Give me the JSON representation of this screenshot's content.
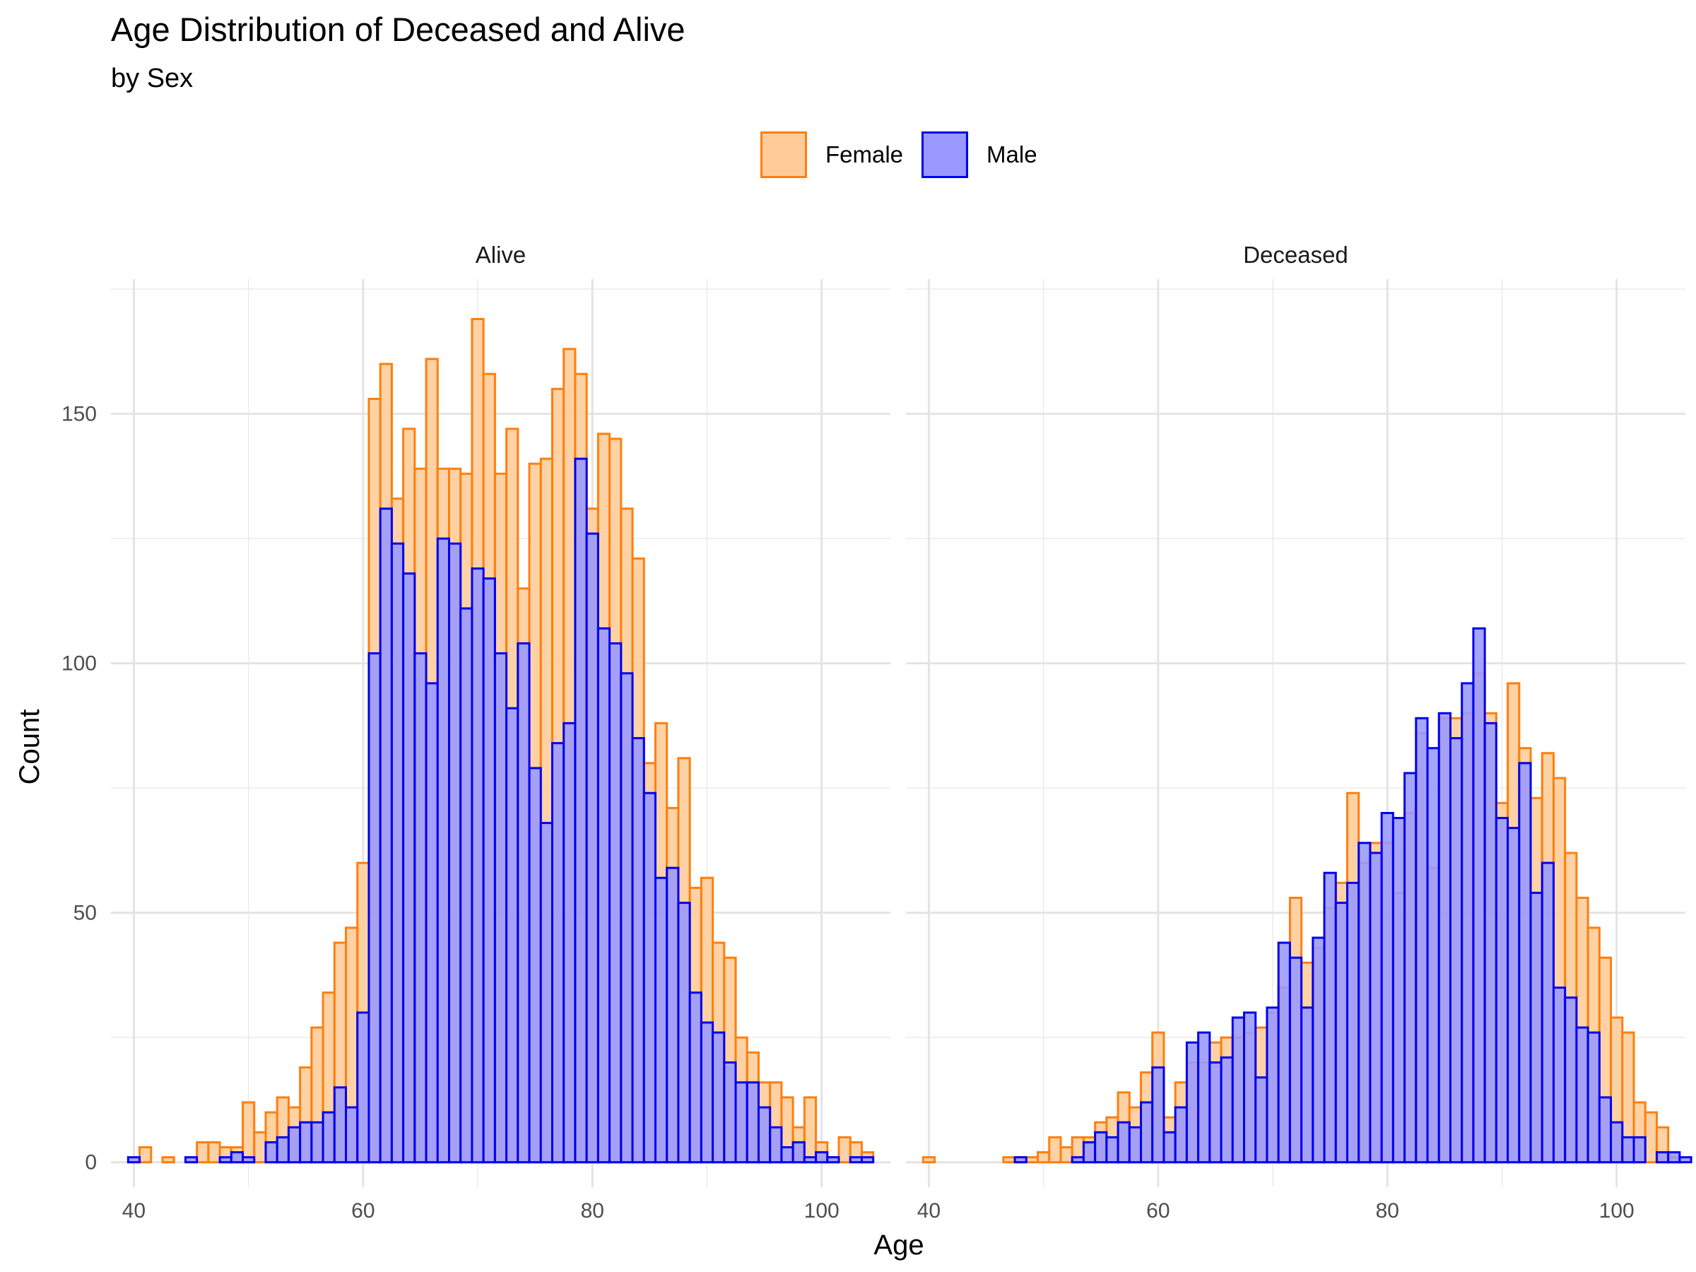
{
  "chart_data": {
    "type": "bar",
    "title": "Age Distribution of Deceased and Alive",
    "subtitle": "by Sex",
    "xlabel": "Age",
    "ylabel": "Count",
    "xlim": [
      38,
      106
    ],
    "ylim": [
      -5,
      177
    ],
    "x_ticks": [
      40,
      60,
      80,
      100
    ],
    "y_ticks": [
      0,
      50,
      100,
      150
    ],
    "grid": true,
    "legend": {
      "position": "top",
      "entries": [
        {
          "name": "Female",
          "fill": "#FFCC99",
          "stroke": "#FF7F0E"
        },
        {
          "name": "Male",
          "fill": "#9999FF",
          "stroke": "#0000EE"
        }
      ]
    },
    "bin_width": 1,
    "bins_start": 40,
    "facets": [
      {
        "label": "Alive",
        "series": [
          {
            "name": "Female",
            "values": [
              0,
              3,
              0,
              1,
              0,
              0,
              4,
              4,
              3,
              3,
              12,
              6,
              10,
              13,
              11,
              19,
              27,
              34,
              44,
              47,
              60,
              153,
              160,
              133,
              147,
              139,
              161,
              139,
              139,
              138,
              169,
              158,
              138,
              147,
              115,
              140,
              141,
              155,
              163,
              158,
              131,
              146,
              145,
              131,
              121,
              80,
              88,
              71,
              81,
              55,
              57,
              44,
              41,
              25,
              22,
              16,
              16,
              13,
              7,
              13,
              4,
              1,
              5,
              4,
              2
            ]
          },
          {
            "name": "Male",
            "values": [
              1,
              0,
              0,
              0,
              0,
              1,
              0,
              0,
              1,
              2,
              1,
              0,
              4,
              5,
              7,
              8,
              8,
              10,
              15,
              11,
              30,
              102,
              131,
              124,
              118,
              102,
              96,
              125,
              124,
              111,
              119,
              117,
              102,
              91,
              104,
              79,
              68,
              84,
              88,
              141,
              126,
              107,
              104,
              98,
              85,
              74,
              57,
              59,
              52,
              34,
              28,
              26,
              20,
              16,
              16,
              11,
              7,
              3,
              4,
              1,
              2,
              1,
              0,
              1,
              1
            ]
          }
        ]
      },
      {
        "label": "Deceased",
        "series": [
          {
            "name": "Female",
            "values": [
              1,
              0,
              0,
              0,
              0,
              0,
              0,
              1,
              1,
              1,
              2,
              5,
              3,
              5,
              5,
              8,
              9,
              14,
              11,
              18,
              26,
              9,
              16,
              20,
              20,
              24,
              25,
              25,
              26,
              27,
              30,
              35,
              53,
              40,
              43,
              51,
              56,
              74,
              60,
              64,
              64,
              54,
              70,
              86,
              59,
              89,
              89,
              90,
              98,
              90,
              72,
              96,
              83,
              73,
              82,
              77,
              62,
              53,
              47,
              41,
              29,
              26,
              12,
              10,
              7,
              1,
              0,
              0
            ]
          },
          {
            "name": "Male",
            "values": [
              0,
              0,
              0,
              0,
              0,
              0,
              0,
              0,
              1,
              0,
              0,
              0,
              0,
              1,
              4,
              6,
              5,
              8,
              7,
              12,
              19,
              6,
              11,
              24,
              26,
              20,
              21,
              29,
              30,
              17,
              31,
              44,
              41,
              31,
              45,
              58,
              52,
              56,
              64,
              62,
              70,
              69,
              78,
              89,
              83,
              90,
              85,
              96,
              107,
              88,
              69,
              67,
              80,
              54,
              60,
              35,
              33,
              27,
              26,
              13,
              8,
              5,
              5,
              0,
              2,
              2,
              1
            ]
          }
        ]
      }
    ]
  }
}
